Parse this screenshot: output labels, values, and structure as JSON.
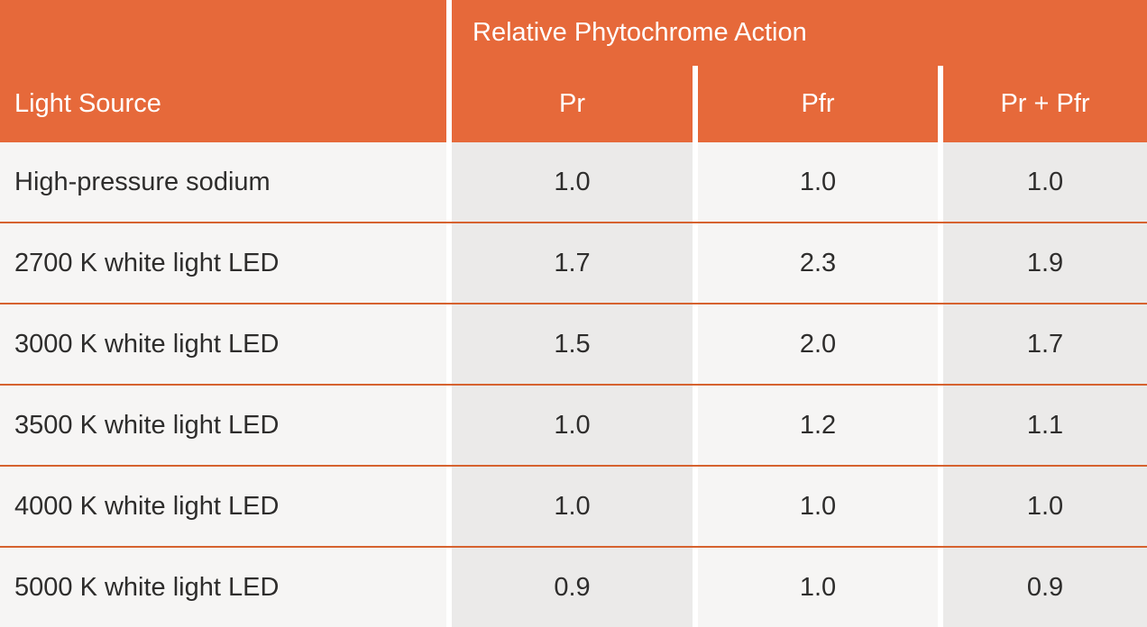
{
  "table": {
    "header": {
      "light_source_label": "Light Source",
      "merged_header": "Relative Phytochrome Action",
      "columns": [
        "Pr",
        "Pfr",
        "Pr + Pfr"
      ]
    },
    "rows": [
      {
        "label": "High-pressure sodium",
        "pr": "1.0",
        "pfr": "1.0",
        "pr_pfr": "1.0"
      },
      {
        "label": "2700 K white light LED",
        "pr": "1.7",
        "pfr": "2.3",
        "pr_pfr": "1.9"
      },
      {
        "label": "3000 K white light LED",
        "pr": "1.5",
        "pfr": "2.0",
        "pr_pfr": "1.7"
      },
      {
        "label": "3500 K white light LED",
        "pr": "1.0",
        "pfr": "1.2",
        "pr_pfr": "1.1"
      },
      {
        "label": "4000 K white light LED",
        "pr": "1.0",
        "pfr": "1.0",
        "pr_pfr": "1.0"
      },
      {
        "label": "5000 K white light LED",
        "pr": "0.9",
        "pfr": "1.0",
        "pr_pfr": "0.9"
      }
    ]
  },
  "colors": {
    "orange": "#E6693A",
    "separator_line": "#D6622F",
    "light_cell": "#F6F5F4",
    "gray_cell": "#EBEAE9",
    "header_text": "#FFFFFF",
    "body_text": "#2E2D2C"
  },
  "chart_data": {
    "type": "table",
    "title": "Relative Phytochrome Action",
    "columns": [
      "Light Source",
      "Pr",
      "Pfr",
      "Pr + Pfr"
    ],
    "rows": [
      [
        "High-pressure sodium",
        1.0,
        1.0,
        1.0
      ],
      [
        "2700 K white light LED",
        1.7,
        2.3,
        1.9
      ],
      [
        "3000 K white light LED",
        1.5,
        2.0,
        1.7
      ],
      [
        "3500 K white light LED",
        1.0,
        1.2,
        1.1
      ],
      [
        "4000 K white light LED",
        1.0,
        1.0,
        1.0
      ],
      [
        "5000 K white light LED",
        0.9,
        1.0,
        0.9
      ]
    ]
  }
}
